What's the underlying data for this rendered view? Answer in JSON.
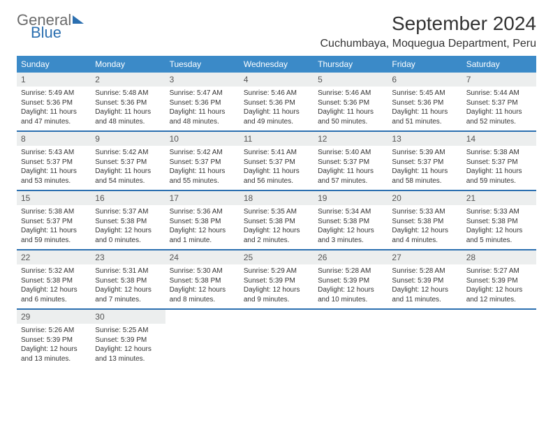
{
  "logo": {
    "text1": "General",
    "text2": "Blue"
  },
  "header": {
    "month_title": "September 2024",
    "location": "Cuchumbaya, Moquegua Department, Peru"
  },
  "colors": {
    "header_bg": "#3b8ac8",
    "header_fg": "#ffffff",
    "week_sep": "#2b6fb0",
    "daynum_bg": "#eceeee",
    "logo_gray": "#6b6b6b",
    "logo_blue": "#2b6fb0"
  },
  "day_headers": [
    "Sunday",
    "Monday",
    "Tuesday",
    "Wednesday",
    "Thursday",
    "Friday",
    "Saturday"
  ],
  "weeks": [
    [
      {
        "n": "1",
        "sr": "Sunrise: 5:49 AM",
        "ss": "Sunset: 5:36 PM",
        "d1": "Daylight: 11 hours",
        "d2": "and 47 minutes."
      },
      {
        "n": "2",
        "sr": "Sunrise: 5:48 AM",
        "ss": "Sunset: 5:36 PM",
        "d1": "Daylight: 11 hours",
        "d2": "and 48 minutes."
      },
      {
        "n": "3",
        "sr": "Sunrise: 5:47 AM",
        "ss": "Sunset: 5:36 PM",
        "d1": "Daylight: 11 hours",
        "d2": "and 48 minutes."
      },
      {
        "n": "4",
        "sr": "Sunrise: 5:46 AM",
        "ss": "Sunset: 5:36 PM",
        "d1": "Daylight: 11 hours",
        "d2": "and 49 minutes."
      },
      {
        "n": "5",
        "sr": "Sunrise: 5:46 AM",
        "ss": "Sunset: 5:36 PM",
        "d1": "Daylight: 11 hours",
        "d2": "and 50 minutes."
      },
      {
        "n": "6",
        "sr": "Sunrise: 5:45 AM",
        "ss": "Sunset: 5:36 PM",
        "d1": "Daylight: 11 hours",
        "d2": "and 51 minutes."
      },
      {
        "n": "7",
        "sr": "Sunrise: 5:44 AM",
        "ss": "Sunset: 5:37 PM",
        "d1": "Daylight: 11 hours",
        "d2": "and 52 minutes."
      }
    ],
    [
      {
        "n": "8",
        "sr": "Sunrise: 5:43 AM",
        "ss": "Sunset: 5:37 PM",
        "d1": "Daylight: 11 hours",
        "d2": "and 53 minutes."
      },
      {
        "n": "9",
        "sr": "Sunrise: 5:42 AM",
        "ss": "Sunset: 5:37 PM",
        "d1": "Daylight: 11 hours",
        "d2": "and 54 minutes."
      },
      {
        "n": "10",
        "sr": "Sunrise: 5:42 AM",
        "ss": "Sunset: 5:37 PM",
        "d1": "Daylight: 11 hours",
        "d2": "and 55 minutes."
      },
      {
        "n": "11",
        "sr": "Sunrise: 5:41 AM",
        "ss": "Sunset: 5:37 PM",
        "d1": "Daylight: 11 hours",
        "d2": "and 56 minutes."
      },
      {
        "n": "12",
        "sr": "Sunrise: 5:40 AM",
        "ss": "Sunset: 5:37 PM",
        "d1": "Daylight: 11 hours",
        "d2": "and 57 minutes."
      },
      {
        "n": "13",
        "sr": "Sunrise: 5:39 AM",
        "ss": "Sunset: 5:37 PM",
        "d1": "Daylight: 11 hours",
        "d2": "and 58 minutes."
      },
      {
        "n": "14",
        "sr": "Sunrise: 5:38 AM",
        "ss": "Sunset: 5:37 PM",
        "d1": "Daylight: 11 hours",
        "d2": "and 59 minutes."
      }
    ],
    [
      {
        "n": "15",
        "sr": "Sunrise: 5:38 AM",
        "ss": "Sunset: 5:37 PM",
        "d1": "Daylight: 11 hours",
        "d2": "and 59 minutes."
      },
      {
        "n": "16",
        "sr": "Sunrise: 5:37 AM",
        "ss": "Sunset: 5:38 PM",
        "d1": "Daylight: 12 hours",
        "d2": "and 0 minutes."
      },
      {
        "n": "17",
        "sr": "Sunrise: 5:36 AM",
        "ss": "Sunset: 5:38 PM",
        "d1": "Daylight: 12 hours",
        "d2": "and 1 minute."
      },
      {
        "n": "18",
        "sr": "Sunrise: 5:35 AM",
        "ss": "Sunset: 5:38 PM",
        "d1": "Daylight: 12 hours",
        "d2": "and 2 minutes."
      },
      {
        "n": "19",
        "sr": "Sunrise: 5:34 AM",
        "ss": "Sunset: 5:38 PM",
        "d1": "Daylight: 12 hours",
        "d2": "and 3 minutes."
      },
      {
        "n": "20",
        "sr": "Sunrise: 5:33 AM",
        "ss": "Sunset: 5:38 PM",
        "d1": "Daylight: 12 hours",
        "d2": "and 4 minutes."
      },
      {
        "n": "21",
        "sr": "Sunrise: 5:33 AM",
        "ss": "Sunset: 5:38 PM",
        "d1": "Daylight: 12 hours",
        "d2": "and 5 minutes."
      }
    ],
    [
      {
        "n": "22",
        "sr": "Sunrise: 5:32 AM",
        "ss": "Sunset: 5:38 PM",
        "d1": "Daylight: 12 hours",
        "d2": "and 6 minutes."
      },
      {
        "n": "23",
        "sr": "Sunrise: 5:31 AM",
        "ss": "Sunset: 5:38 PM",
        "d1": "Daylight: 12 hours",
        "d2": "and 7 minutes."
      },
      {
        "n": "24",
        "sr": "Sunrise: 5:30 AM",
        "ss": "Sunset: 5:38 PM",
        "d1": "Daylight: 12 hours",
        "d2": "and 8 minutes."
      },
      {
        "n": "25",
        "sr": "Sunrise: 5:29 AM",
        "ss": "Sunset: 5:39 PM",
        "d1": "Daylight: 12 hours",
        "d2": "and 9 minutes."
      },
      {
        "n": "26",
        "sr": "Sunrise: 5:28 AM",
        "ss": "Sunset: 5:39 PM",
        "d1": "Daylight: 12 hours",
        "d2": "and 10 minutes."
      },
      {
        "n": "27",
        "sr": "Sunrise: 5:28 AM",
        "ss": "Sunset: 5:39 PM",
        "d1": "Daylight: 12 hours",
        "d2": "and 11 minutes."
      },
      {
        "n": "28",
        "sr": "Sunrise: 5:27 AM",
        "ss": "Sunset: 5:39 PM",
        "d1": "Daylight: 12 hours",
        "d2": "and 12 minutes."
      }
    ],
    [
      {
        "n": "29",
        "sr": "Sunrise: 5:26 AM",
        "ss": "Sunset: 5:39 PM",
        "d1": "Daylight: 12 hours",
        "d2": "and 13 minutes."
      },
      {
        "n": "30",
        "sr": "Sunrise: 5:25 AM",
        "ss": "Sunset: 5:39 PM",
        "d1": "Daylight: 12 hours",
        "d2": "and 13 minutes."
      },
      {
        "empty": true
      },
      {
        "empty": true
      },
      {
        "empty": true
      },
      {
        "empty": true
      },
      {
        "empty": true
      }
    ]
  ]
}
